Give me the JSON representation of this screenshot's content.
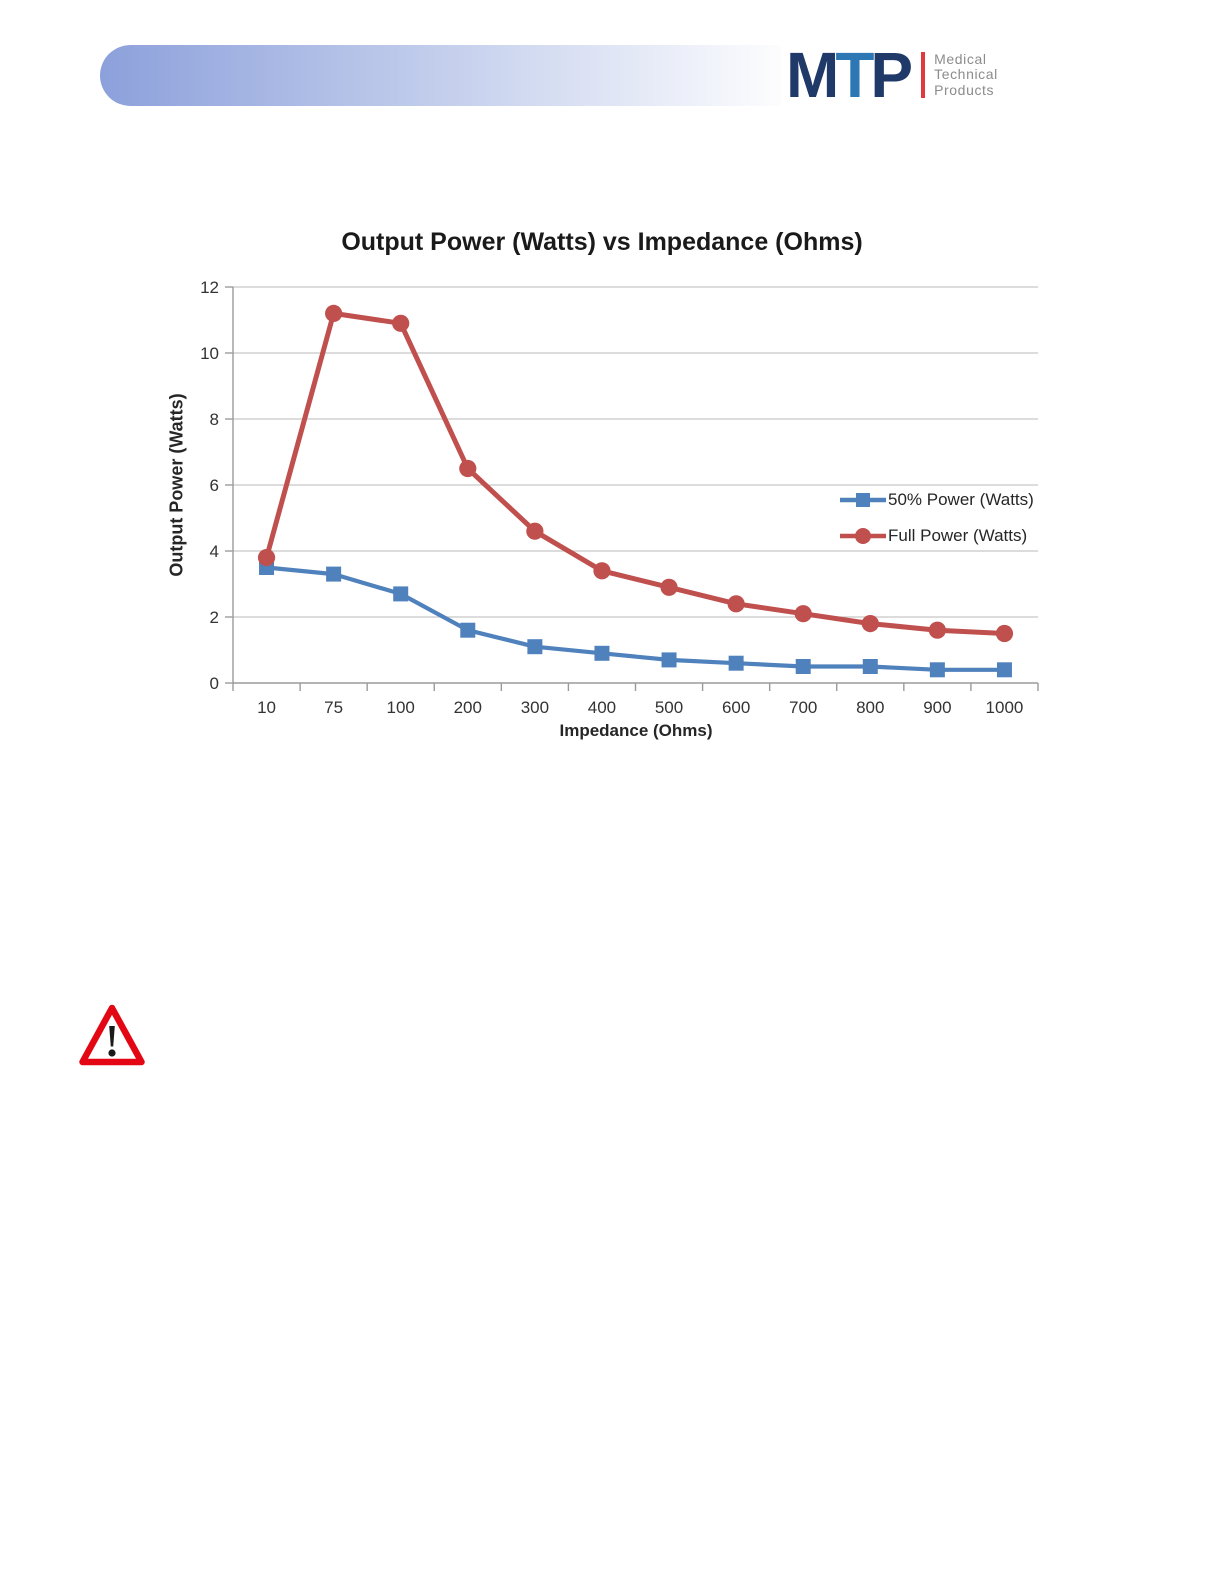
{
  "header": {
    "bar_gradient": [
      "#8CA0DB",
      "#C9D3EE",
      "#FDFDFE"
    ],
    "logo": {
      "letters": [
        {
          "char": "M",
          "color": "#1F3968"
        },
        {
          "char": "T",
          "color": "#2E77B5"
        },
        {
          "char": "P",
          "color": "#1F3968"
        }
      ],
      "divider_color": "#E03A3E",
      "tagline": [
        "Medical",
        "Technical",
        "Products"
      ],
      "tagline_color": "#8C8C8C"
    }
  },
  "chart_data": {
    "type": "line",
    "title": "Output Power (Watts) vs Impedance (Ohms)",
    "xlabel": "Impedance (Ohms)",
    "ylabel": "Output Power (Watts)",
    "categories": [
      "10",
      "75",
      "100",
      "200",
      "300",
      "400",
      "500",
      "600",
      "700",
      "800",
      "900",
      "1000"
    ],
    "series": [
      {
        "name": "50% Power (Watts)",
        "color": "#4F81BD",
        "marker": "square",
        "values": [
          3.5,
          3.3,
          2.7,
          1.6,
          1.1,
          0.9,
          0.7,
          0.6,
          0.5,
          0.5,
          0.4,
          0.4
        ]
      },
      {
        "name": "Full Power (Watts)",
        "color": "#C0504D",
        "marker": "circle",
        "values": [
          3.8,
          11.2,
          10.9,
          6.5,
          4.6,
          3.4,
          2.9,
          2.4,
          2.1,
          1.8,
          1.6,
          1.5
        ]
      }
    ],
    "ylim": [
      0,
      12
    ],
    "ytick_step": 2,
    "yticks": [
      "0",
      "2",
      "4",
      "6",
      "8",
      "10",
      "12"
    ],
    "grid": true,
    "grid_color": "#C6C6C6",
    "axis_color": "#9B9B9B",
    "tick_text_color": "#333333",
    "legend_position": "right-middle"
  },
  "warning_icon": {
    "name": "warning-triangle",
    "stroke_color": "#E30613",
    "fill_color": "#FFFFFF",
    "symbol_color": "#1A1A1A"
  }
}
